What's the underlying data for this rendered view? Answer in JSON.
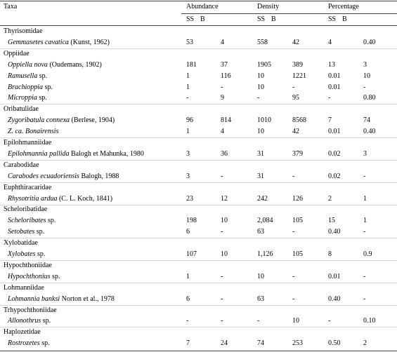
{
  "table": {
    "header": "Taxa",
    "columns": [
      {
        "title": "Abundance",
        "sub": [
          "SS",
          "B"
        ]
      },
      {
        "title": "Density",
        "sub": [
          "SS",
          "B"
        ]
      },
      {
        "title": "Percentage",
        "sub": [
          "SS",
          "B"
        ]
      }
    ],
    "rows": [
      {
        "family": "Thyrisomidae"
      },
      {
        "name": "Gemmasetes cavatica",
        "author": "(Kunst, 1962)",
        "values": [
          "53",
          "4",
          "558",
          "42",
          "4",
          "0.40"
        ]
      },
      {
        "family": "Oppiidae"
      },
      {
        "name": "Oppiella nova",
        "author": "(Oudemans, 1902)",
        "values": [
          "181",
          "37",
          "1905",
          "389",
          "13",
          "3"
        ]
      },
      {
        "name": "Ramusella",
        "author": "sp.",
        "values": [
          "1",
          "116",
          "10",
          "1221",
          "0.01",
          "10"
        ]
      },
      {
        "name": "Brachioppia",
        "author": "sp.",
        "values": [
          "1",
          "-",
          "10",
          "-",
          "0.01",
          "-"
        ]
      },
      {
        "name": "Microppia",
        "author": "sp.",
        "values": [
          "-",
          "9",
          "-",
          "95",
          "-",
          "0.80"
        ]
      },
      {
        "family": "Oribatulidae"
      },
      {
        "name": "Zygoribatula connexa",
        "author": "(Berlese, 1904)",
        "values": [
          "96",
          "814",
          "1010",
          "8568",
          "7",
          "74"
        ]
      },
      {
        "name": "Z. ca. Bonairensis",
        "values": [
          "1",
          "4",
          "10",
          "42",
          "0.01",
          "0.40"
        ]
      },
      {
        "family": "Epilohmanniidae"
      },
      {
        "name": "Epilohmannia pallida",
        "author": "Balogh et Mahunka, 1980",
        "values": [
          "3",
          "36",
          "31",
          "379",
          "0.02",
          "3"
        ]
      },
      {
        "family": "Carabodidae"
      },
      {
        "name": "Carabodes ecuadoriensis",
        "author": "Balogh, 1988",
        "values": [
          "3",
          "-",
          "31",
          "-",
          "0.02",
          "-"
        ]
      },
      {
        "family": "Euphthiracaridae"
      },
      {
        "name": "Rhysotritia ardua",
        "author": "(C. L. Koch, 1841)",
        "values": [
          "23",
          "12",
          "242",
          "126",
          "2",
          "1"
        ]
      },
      {
        "family": "Scheloribatidae"
      },
      {
        "name": "Scheloribates",
        "author": "sp.",
        "values": [
          "198",
          "10",
          "2,084",
          "105",
          "15",
          "1"
        ]
      },
      {
        "name": "Setobates",
        "author": "sp.",
        "values": [
          "6",
          "-",
          "63",
          "-",
          "0.40",
          "-"
        ]
      },
      {
        "family": "Xylobatidae"
      },
      {
        "name": "Xylobates",
        "author": "sp.",
        "values": [
          "107",
          "10",
          "1,126",
          "105",
          "8",
          "0.9"
        ]
      },
      {
        "family": "Hypochthoniidae"
      },
      {
        "name": "Hypochthonius",
        "author": "sp.",
        "values": [
          "1",
          "-",
          "10",
          "-",
          "0.01",
          "-"
        ]
      },
      {
        "family": "Lohmanniidae"
      },
      {
        "name": "Lohmannia banksi",
        "author": "Norton et al., 1978",
        "values": [
          "6",
          "-",
          "63",
          "-",
          "0.40",
          "-"
        ]
      },
      {
        "family": "Trhypochthoniidae"
      },
      {
        "name": "Allonothrus",
        "author": "sp.",
        "values": [
          "-",
          "-",
          "-",
          "10",
          "-",
          "0.10"
        ]
      },
      {
        "family": "Haplozetidae"
      },
      {
        "name": "Rostrozetes",
        "author": "sp.",
        "values": [
          "7",
          "24",
          "74",
          "253",
          "0.50",
          "2"
        ]
      }
    ]
  }
}
